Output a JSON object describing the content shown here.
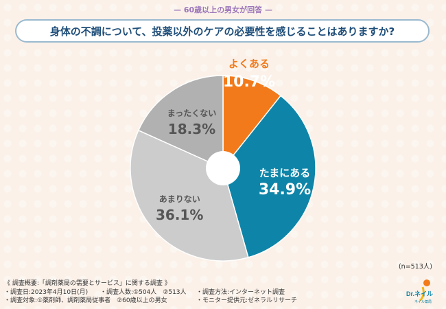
{
  "header": {
    "subtitle": "— 60歳以上の男女が回答 —",
    "title": "身体の不調について、投薬以外のケアの必要性を感じることはありますか?"
  },
  "chart_data": {
    "type": "pie",
    "donut": true,
    "slices": [
      {
        "name": "よくある",
        "value": 10.7,
        "color": "#f27a1a"
      },
      {
        "name": "たまにある",
        "value": 34.9,
        "color": "#0e85a8"
      },
      {
        "name": "あまりない",
        "value": 36.1,
        "color": "#cccccc"
      },
      {
        "name": "まったくない",
        "value": 18.3,
        "color": "#b1b1b1"
      }
    ],
    "n_label": "(n=513人)"
  },
  "footer": {
    "title": "《 調査概要:「調剤薬局の需要とサービス」に関する調査 》",
    "row1": [
      "・調査日:2023年4月10日(月)",
      "・調査人数:①504人　②513人",
      "・調査方法:インターネット調査"
    ],
    "row2": [
      "・調査対象:①薬剤師、調剤薬局従事者　②60歳以上の男女",
      "・モニター提供元:ゼネラルリサーチ"
    ]
  },
  "logo": {
    "text": "Dr.ネイル",
    "sub": "ネイル薬局"
  }
}
